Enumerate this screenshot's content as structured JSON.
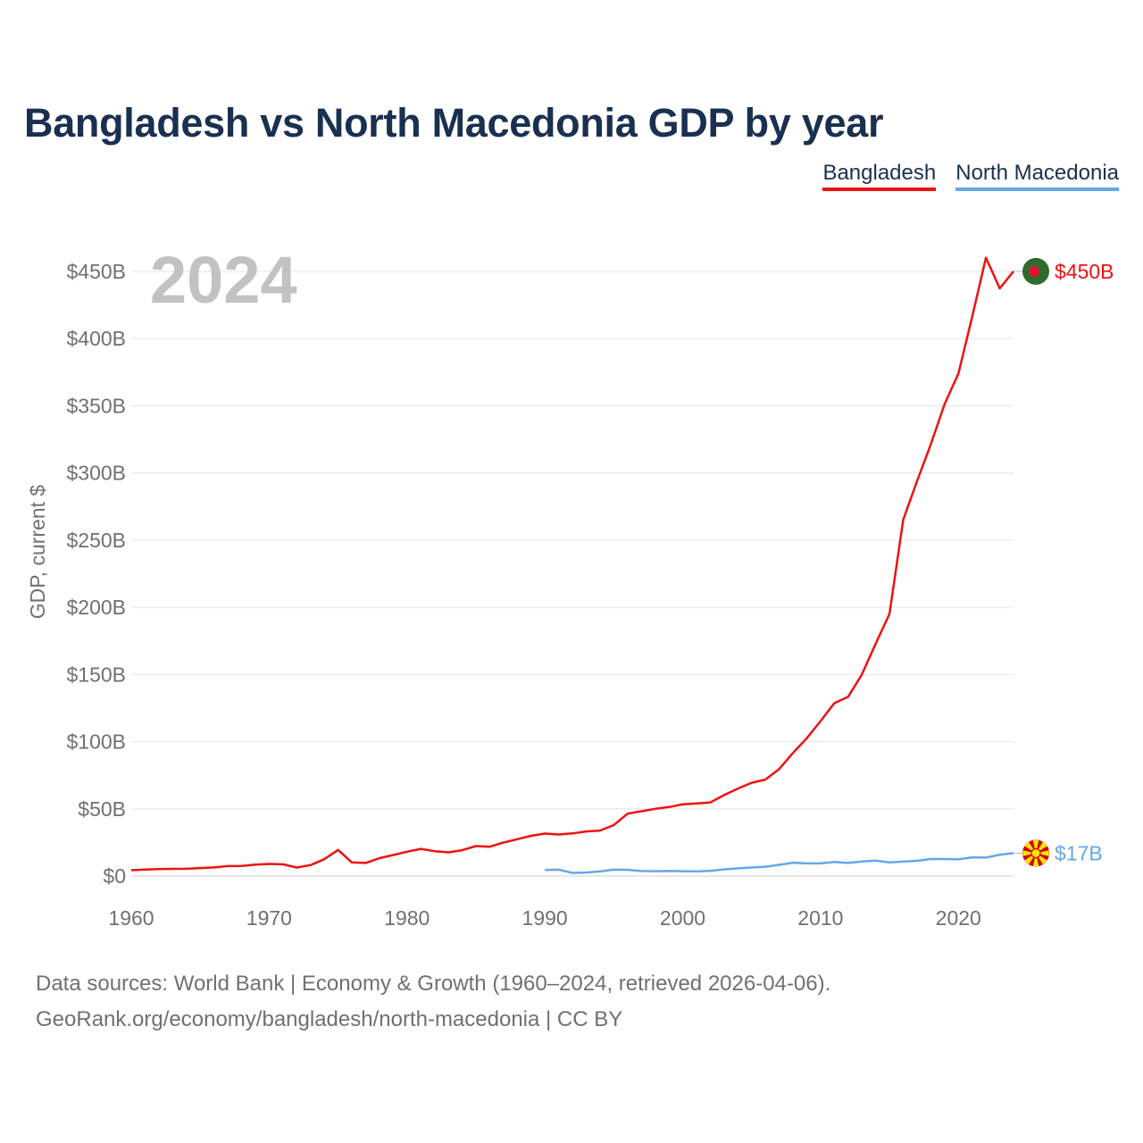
{
  "chart_data": {
    "type": "line",
    "title": "Bangladesh vs North Macedonia GDP by year",
    "ylabel": "GDP, current $",
    "xlabel": "",
    "year_label": "2024",
    "xlim": [
      1960,
      2024
    ],
    "ylim": [
      0,
      450
    ],
    "x_ticks": [
      1960,
      1970,
      1980,
      1990,
      2000,
      2010,
      2020
    ],
    "y_ticks": [
      0,
      50,
      100,
      150,
      200,
      250,
      300,
      350,
      400,
      450
    ],
    "y_tick_labels": [
      "$0",
      "$50B",
      "$100B",
      "$150B",
      "$200B",
      "$250B",
      "$300B",
      "$350B",
      "$400B",
      "$450B"
    ],
    "legend_position": "top-right",
    "series": [
      {
        "name": "Bangladesh",
        "color": "#ee1111",
        "end_label": "$450B",
        "flag": "bangladesh-flag-icon",
        "x": [
          1960,
          1961,
          1962,
          1963,
          1964,
          1965,
          1966,
          1967,
          1968,
          1969,
          1970,
          1971,
          1972,
          1973,
          1974,
          1975,
          1976,
          1977,
          1978,
          1979,
          1980,
          1981,
          1982,
          1983,
          1984,
          1985,
          1986,
          1987,
          1988,
          1989,
          1990,
          1991,
          1992,
          1993,
          1994,
          1995,
          1996,
          1997,
          1998,
          1999,
          2000,
          2001,
          2002,
          2003,
          2004,
          2005,
          2006,
          2007,
          2008,
          2009,
          2010,
          2011,
          2012,
          2013,
          2014,
          2015,
          2016,
          2017,
          2018,
          2019,
          2020,
          2021,
          2022,
          2023,
          2024
        ],
        "values": [
          4.3,
          4.8,
          5.1,
          5.3,
          5.4,
          5.9,
          6.4,
          7.4,
          7.5,
          8.5,
          9.0,
          8.7,
          6.3,
          8.1,
          12.5,
          19.4,
          10.1,
          9.7,
          13.3,
          15.6,
          18.1,
          20.2,
          18.5,
          17.6,
          19.2,
          22.3,
          21.8,
          24.9,
          27.4,
          29.9,
          31.6,
          30.9,
          31.7,
          33.2,
          33.8,
          37.9,
          46.4,
          48.2,
          50.0,
          51.3,
          53.4,
          54.0,
          54.7,
          60.2,
          65.1,
          69.4,
          71.8,
          79.6,
          91.6,
          102.5,
          115.3,
          128.6,
          133.4,
          150.0,
          172.9,
          195.1,
          265.2,
          293.8,
          321.4,
          351.2,
          374.0,
          416.3,
          460.2,
          437.4,
          450.1
        ]
      },
      {
        "name": "North Macedonia",
        "color": "#63a8e8",
        "end_label": "$17B",
        "flag": "north-macedonia-flag-icon",
        "x": [
          1990,
          1991,
          1992,
          1993,
          1994,
          1995,
          1996,
          1997,
          1998,
          1999,
          2000,
          2001,
          2002,
          2003,
          2004,
          2005,
          2006,
          2007,
          2008,
          2009,
          2010,
          2011,
          2012,
          2013,
          2014,
          2015,
          2016,
          2017,
          2018,
          2019,
          2020,
          2021,
          2022,
          2023,
          2024
        ],
        "values": [
          4.5,
          4.7,
          2.3,
          2.6,
          3.4,
          4.7,
          4.6,
          3.7,
          3.6,
          3.7,
          3.6,
          3.4,
          3.8,
          4.9,
          5.7,
          6.3,
          6.9,
          8.3,
          9.9,
          9.4,
          9.4,
          10.5,
          9.7,
          10.8,
          11.4,
          10.1,
          10.7,
          11.3,
          12.7,
          12.6,
          12.4,
          13.9,
          13.7,
          15.8,
          17.0
        ]
      }
    ],
    "footer": {
      "line1": "Data sources: World Bank | Economy & Growth (1960–2024, retrieved 2026-04-06).",
      "line2": "GeoRank.org/economy/bangladesh/north-macedonia | CC BY"
    }
  }
}
